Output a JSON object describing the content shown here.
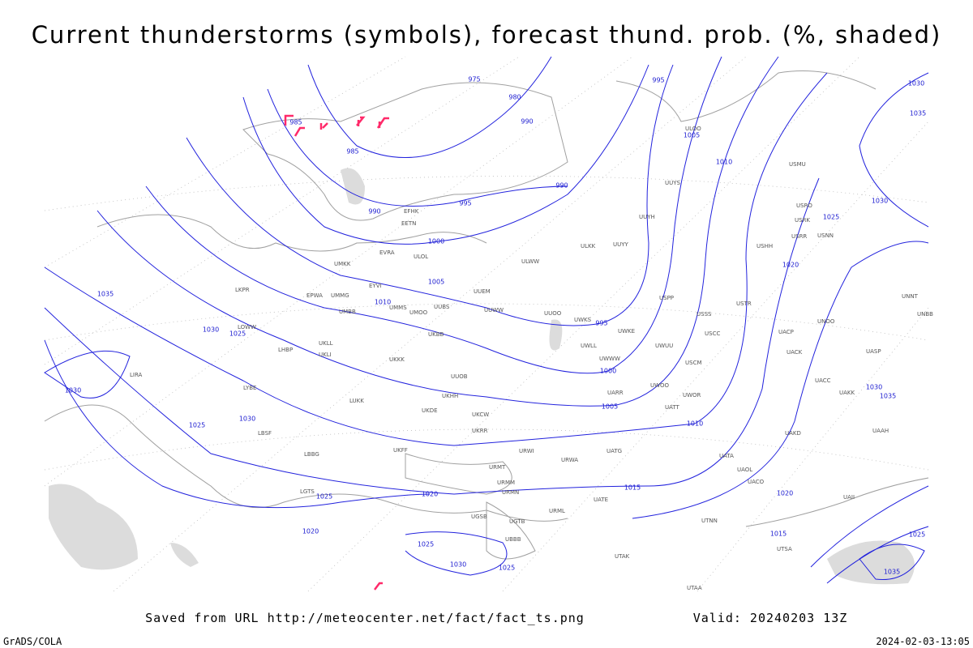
{
  "header": {
    "title": "Current thunderstorms (symbols), forecast thund. prob. (%, shaded)"
  },
  "isobar_labels": [
    975,
    980,
    985,
    985,
    990,
    990,
    990,
    995,
    995,
    995,
    1000,
    1000,
    1005,
    1005,
    1005,
    1010,
    1010,
    1010,
    1015,
    1015,
    1020,
    1020,
    1020,
    1020,
    1025,
    1025,
    1025,
    1025,
    1025,
    1025,
    1030,
    1030,
    1030,
    1030,
    1030,
    1030,
    1030,
    1035,
    1035,
    1035,
    1035,
    1025
  ],
  "stations": [
    "EFHK",
    "EETN",
    "ULOL",
    "EVRA",
    "UMKK",
    "EYVI",
    "UMMG",
    "EPWA",
    "UMBB",
    "UMMS",
    "UMOO",
    "UUBS",
    "UUEM",
    "UUWW",
    "UUOO",
    "ULWW",
    "ULKK",
    "UUYY",
    "UUYH",
    "UUYS",
    "UKKK",
    "UKLL",
    "UKLI",
    "UKBB",
    "UUOB",
    "UKHH",
    "UKDE",
    "UKCW",
    "UKRR",
    "URWI",
    "UKFF",
    "LBBG",
    "LUKK",
    "LYBE",
    "LKPR",
    "LOWW",
    "LHBP",
    "LBSF",
    "LGTS",
    "UGSB",
    "UGTB",
    "UBBB",
    "URMT",
    "URMM",
    "URMN",
    "URML",
    "UATE",
    "UATG",
    "URWA",
    "UWWW",
    "UWKE",
    "UWKS",
    "UWLL",
    "UWUU",
    "UWOO",
    "UARR",
    "UATT",
    "UWOR",
    "USCM",
    "USSS",
    "USCC",
    "USPP",
    "USTR",
    "USMU",
    "USRR",
    "USNN",
    "USRK",
    "USRO",
    "USHH",
    "UNOO",
    "UACP",
    "UACK",
    "UACC",
    "UAKK",
    "UASP",
    "UNNT",
    "UNBB",
    "UAAH",
    "UAKD",
    "UAOL",
    "UATA",
    "UACO",
    "UAII",
    "UTNN",
    "UTAK",
    "UTAA",
    "UTSA",
    "LIRA",
    "ULOO"
  ],
  "footer": {
    "saved_from": "Saved from URL http://meteocenter.net/fact/fact_ts.png",
    "valid": "Valid: 20240203 13Z",
    "credit": "GrADS/COLA",
    "timestamp": "2024-02-03-13:05"
  }
}
